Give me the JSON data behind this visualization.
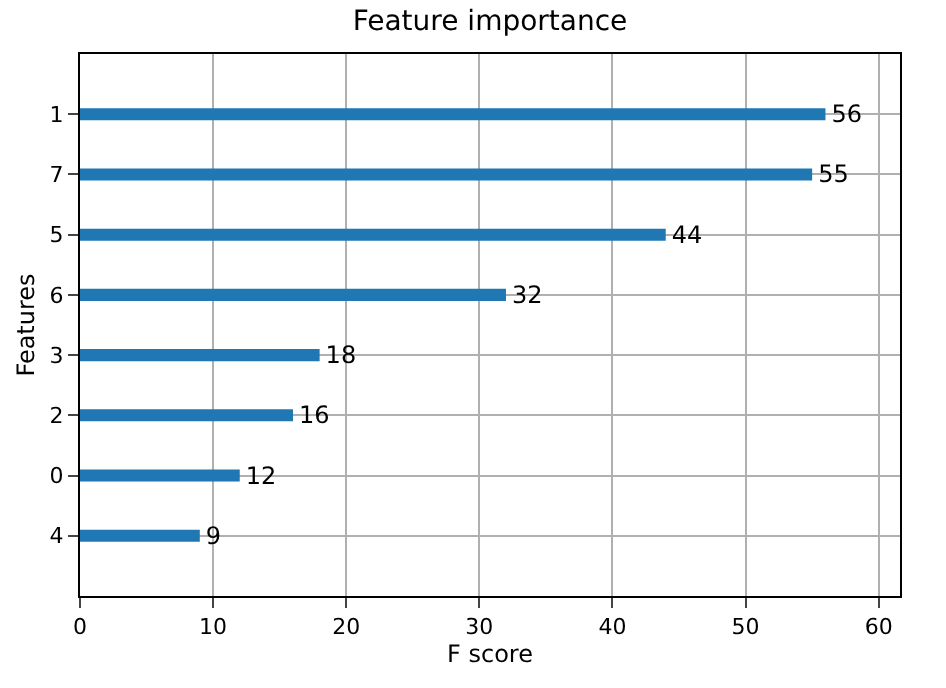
{
  "chart_data": {
    "type": "bar",
    "orientation": "horizontal",
    "title": "Feature importance",
    "xlabel": "F score",
    "ylabel": "Features",
    "categories": [
      "1",
      "7",
      "5",
      "6",
      "3",
      "2",
      "0",
      "4"
    ],
    "values": [
      56,
      55,
      44,
      32,
      18,
      16,
      12,
      9
    ],
    "color": "#1f77b4",
    "data_labels": true,
    "grid": true,
    "xlim": [
      0,
      61.6
    ],
    "xticks": [
      0,
      10,
      20,
      30,
      40,
      50,
      60
    ]
  }
}
